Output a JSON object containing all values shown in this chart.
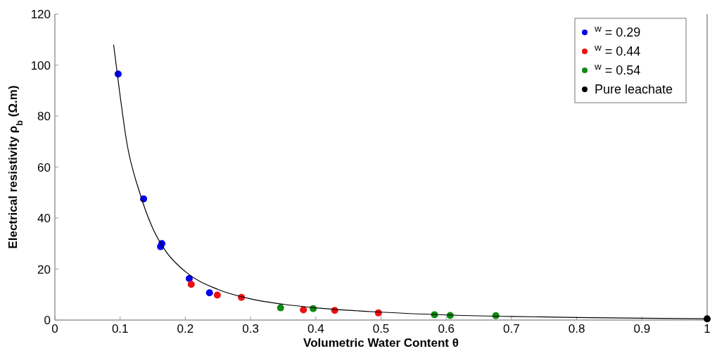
{
  "chart_data": {
    "type": "scatter",
    "xlabel": "Volumetric Water Content θ",
    "ylabel": "Electrical resistivity ρ$_{b}$ (Ω.m)",
    "xlim": [
      0,
      1
    ],
    "ylim": [
      0,
      120
    ],
    "xticks": [
      0,
      0.1,
      0.2,
      0.3,
      0.4,
      0.5,
      0.6,
      0.7,
      0.8,
      0.9,
      1
    ],
    "yticks": [
      0,
      20,
      40,
      60,
      80,
      100,
      120
    ],
    "marker": "circle",
    "legend": "top right",
    "grid": false,
    "series": [
      {
        "name": "$^{w}$ = 0.29",
        "color": "#0000ee",
        "x": [
          0.097,
          0.136,
          0.162,
          0.164,
          0.206,
          0.237
        ],
        "values": [
          96.5,
          47.5,
          28.8,
          30,
          16.3,
          10.7
        ]
      },
      {
        "name": "$^{w}$ = 0.44",
        "color": "#ee1111",
        "x": [
          0.209,
          0.249,
          0.286,
          0.381,
          0.429,
          0.496
        ],
        "values": [
          14,
          9.8,
          8.9,
          4,
          3.8,
          2.8
        ]
      },
      {
        "name": "$^{w}$ = 0.54",
        "color": "#118811",
        "x": [
          0.346,
          0.396,
          0.582,
          0.606,
          0.676
        ],
        "values": [
          4.8,
          4.5,
          2.1,
          1.8,
          1.7
        ]
      },
      {
        "name": "Pure leachate",
        "color": "#000000",
        "x": [
          1
        ],
        "values": [
          0.5
        ]
      },
      {
        "type": "line",
        "color": "#000000",
        "marker": "none",
        "x": [
          0.09,
          0.1,
          0.11,
          0.13,
          0.15,
          0.17,
          0.2,
          0.25,
          0.3,
          0.35,
          0.4,
          0.5,
          0.6,
          0.7,
          0.8,
          0.9,
          1
        ],
        "values": [
          108,
          88,
          70,
          50,
          36,
          27,
          19,
          12,
          8.3,
          6.2,
          4.8,
          3.1,
          2.0,
          1.4,
          1.0,
          0.7,
          0.5
        ]
      }
    ]
  }
}
